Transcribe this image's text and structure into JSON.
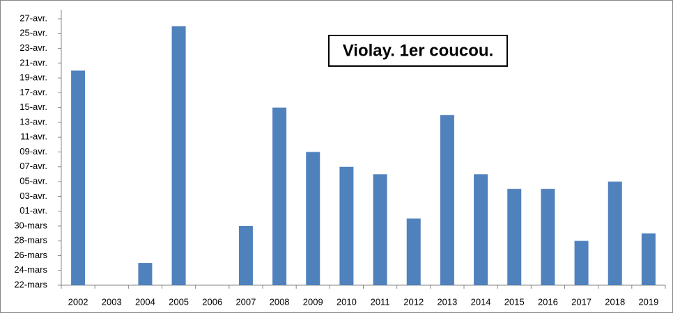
{
  "chart_data": {
    "type": "bar",
    "title": "Violay. 1er coucou.",
    "categories": [
      "2002",
      "2003",
      "2004",
      "2005",
      "2006",
      "2007",
      "2008",
      "2009",
      "2010",
      "2011",
      "2012",
      "2013",
      "2014",
      "2015",
      "2016",
      "2017",
      "2018",
      "2019"
    ],
    "values": [
      110,
      null,
      84,
      116,
      null,
      89,
      105,
      99,
      97,
      96,
      90,
      104,
      96,
      94,
      94,
      87,
      95,
      88
    ],
    "color": "#4f81bd",
    "ylim": [
      81,
      117
    ],
    "yticks": [
      {
        "value": 81,
        "label": "22-mars"
      },
      {
        "value": 83,
        "label": "24-mars"
      },
      {
        "value": 85,
        "label": "26-mars"
      },
      {
        "value": 87,
        "label": "28-mars"
      },
      {
        "value": 89,
        "label": "30-mars"
      },
      {
        "value": 91,
        "label": "01-avr."
      },
      {
        "value": 93,
        "label": "03-avr."
      },
      {
        "value": 95,
        "label": "05-avr."
      },
      {
        "value": 97,
        "label": "07-avr."
      },
      {
        "value": 99,
        "label": "09-avr."
      },
      {
        "value": 101,
        "label": "11-avr."
      },
      {
        "value": 103,
        "label": "13-avr."
      },
      {
        "value": 105,
        "label": "15-avr."
      },
      {
        "value": 107,
        "label": "17-avr."
      },
      {
        "value": 109,
        "label": "19-avr."
      },
      {
        "value": 111,
        "label": "21-avr."
      },
      {
        "value": 113,
        "label": "23-avr."
      },
      {
        "value": 115,
        "label": "25-avr."
      },
      {
        "value": 117,
        "label": "27-avr."
      }
    ],
    "grid": false
  }
}
